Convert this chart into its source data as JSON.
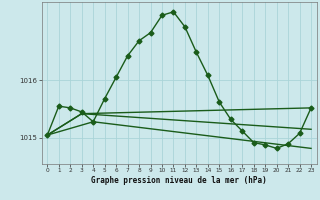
{
  "xlabel": "Graphe pression niveau de la mer (hPa)",
  "background_color": "#cce8eb",
  "grid_color": "#aad4d8",
  "line_color": "#1a5c1a",
  "xlim": [
    -0.5,
    23.5
  ],
  "ylim": [
    1014.55,
    1017.35
  ],
  "yticks": [
    1015,
    1016
  ],
  "xticks": [
    0,
    1,
    2,
    3,
    4,
    5,
    6,
    7,
    8,
    9,
    10,
    11,
    12,
    13,
    14,
    15,
    16,
    17,
    18,
    19,
    20,
    21,
    22,
    23
  ],
  "line1_x": [
    0,
    1,
    2,
    3,
    4,
    5,
    6,
    7,
    8,
    9,
    10,
    11,
    12,
    13,
    14,
    15,
    16,
    17,
    18,
    19,
    20,
    21,
    22,
    23
  ],
  "line1_y": [
    1015.05,
    1015.55,
    1015.52,
    1015.45,
    1015.28,
    1015.68,
    1016.05,
    1016.42,
    1016.68,
    1016.82,
    1017.12,
    1017.18,
    1016.92,
    1016.48,
    1016.08,
    1015.62,
    1015.32,
    1015.12,
    1014.92,
    1014.88,
    1014.82,
    1014.9,
    1015.08,
    1015.52
  ],
  "line2_x": [
    0,
    3,
    23
  ],
  "line2_y": [
    1015.05,
    1015.42,
    1015.52
  ],
  "line3_x": [
    0,
    3,
    23
  ],
  "line3_y": [
    1015.05,
    1015.42,
    1015.15
  ],
  "line4_x": [
    0,
    4,
    23
  ],
  "line4_y": [
    1015.05,
    1015.28,
    1014.82
  ],
  "markersize": 2.5,
  "linewidth": 1.0
}
